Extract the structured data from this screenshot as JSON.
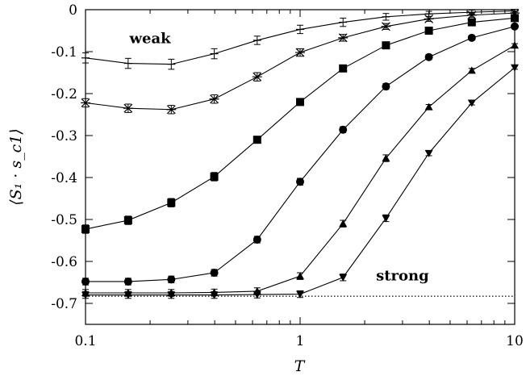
{
  "chart_data": {
    "type": "line",
    "xscale": "log",
    "xlim": [
      0.1,
      10
    ],
    "ylim": [
      -0.75,
      0
    ],
    "xlabel": "T",
    "ylabel": "⟨S₁ · s_c1⟩",
    "xticks": [
      "0.1",
      "1",
      "10"
    ],
    "yticks": [
      "0",
      "-0.1",
      "-0.2",
      "-0.3",
      "-0.4",
      "-0.5",
      "-0.6",
      "-0.7"
    ],
    "yticks_values": [
      0,
      -0.1,
      -0.2,
      -0.3,
      -0.4,
      -0.5,
      -0.6,
      -0.7
    ],
    "grid": false,
    "annotations": [
      {
        "text": "weak",
        "x": 0.2,
        "y": -0.08
      },
      {
        "text": "strong",
        "x": 3.0,
        "y": -0.645
      }
    ],
    "reference_line": {
      "y": -0.683,
      "style": "dotted"
    },
    "x": [
      0.1,
      0.158,
      0.251,
      0.398,
      0.631,
      1.0,
      1.585,
      2.512,
      3.981,
      6.31,
      10.0
    ],
    "series": [
      {
        "marker": "plus",
        "values": [
          -0.115,
          -0.128,
          -0.13,
          -0.105,
          -0.073,
          -0.047,
          -0.03,
          -0.017,
          -0.01,
          -0.006,
          -0.003
        ],
        "errors": [
          0.012,
          0.012,
          0.012,
          0.012,
          0.01,
          0.01,
          0.01,
          0.008,
          0.006,
          0.005,
          0.004
        ]
      },
      {
        "marker": "asterisk",
        "values": [
          -0.222,
          -0.235,
          -0.238,
          -0.213,
          -0.16,
          -0.102,
          -0.067,
          -0.04,
          -0.022,
          -0.013,
          -0.008
        ],
        "errors": [
          0.01,
          0.01,
          0.01,
          0.01,
          0.01,
          0.009,
          0.008,
          0.007,
          0.006,
          0.005,
          0.004
        ]
      },
      {
        "marker": "square",
        "values": [
          -0.523,
          -0.502,
          -0.46,
          -0.398,
          -0.31,
          -0.22,
          -0.14,
          -0.085,
          -0.05,
          -0.03,
          -0.02
        ],
        "errors": [
          0.01,
          0.01,
          0.01,
          0.01,
          0.008,
          0.008,
          0.008,
          0.007,
          0.006,
          0.005,
          0.005
        ]
      },
      {
        "marker": "circle",
        "values": [
          -0.648,
          -0.648,
          -0.643,
          -0.627,
          -0.548,
          -0.41,
          -0.286,
          -0.183,
          -0.113,
          -0.067,
          -0.04
        ],
        "errors": [
          0.008,
          0.008,
          0.008,
          0.008,
          0.008,
          0.008,
          0.007,
          0.007,
          0.006,
          0.005,
          0.004
        ]
      },
      {
        "marker": "triangle-up",
        "values": [
          -0.675,
          -0.675,
          -0.675,
          -0.674,
          -0.671,
          -0.635,
          -0.51,
          -0.354,
          -0.232,
          -0.145,
          -0.085
        ],
        "errors": [
          0.008,
          0.008,
          0.008,
          0.008,
          0.008,
          0.008,
          0.008,
          0.008,
          0.006,
          0.005,
          0.004
        ]
      },
      {
        "marker": "triangle-down",
        "values": [
          -0.68,
          -0.68,
          -0.68,
          -0.68,
          -0.679,
          -0.678,
          -0.638,
          -0.497,
          -0.342,
          -0.222,
          -0.138
        ],
        "errors": [
          0.008,
          0.008,
          0.008,
          0.008,
          0.008,
          0.008,
          0.008,
          0.008,
          0.006,
          0.005,
          0.004
        ]
      }
    ]
  }
}
